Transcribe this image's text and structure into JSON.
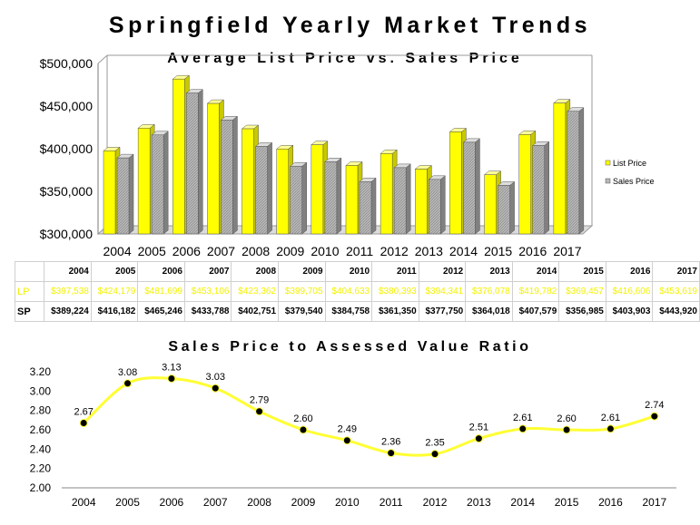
{
  "title": "Springfield Yearly Market Trends",
  "colors": {
    "list_price": "#ffff00",
    "sales_price": "#b8b8b8",
    "line": "#ffff33",
    "marker": "#000000"
  },
  "chart_data": [
    {
      "type": "bar",
      "title": "Average List Price vs. Sales Price",
      "categories": [
        "2004",
        "2005",
        "2006",
        "2007",
        "2008",
        "2009",
        "2010",
        "2011",
        "2012",
        "2013",
        "2014",
        "2015",
        "2016",
        "2017"
      ],
      "series": [
        {
          "name": "List Price",
          "values": [
            397538,
            424179,
            481699,
            453106,
            423362,
            399705,
            404633,
            380393,
            394341,
            376078,
            419782,
            369457,
            416606,
            453619
          ]
        },
        {
          "name": "Sales Price",
          "values": [
            389224,
            416182,
            465246,
            433788,
            402751,
            379540,
            384758,
            361350,
            377750,
            364018,
            407579,
            356985,
            403903,
            443920
          ]
        }
      ],
      "ylim": [
        300000,
        500000
      ],
      "yticks": [
        "$300,000",
        "$350,000",
        "$400,000",
        "$450,000",
        "$500,000"
      ],
      "legend": "right",
      "grid": false
    },
    {
      "type": "line",
      "title": "Sales Price to Assessed Value Ratio",
      "x": [
        "2004",
        "2005",
        "2006",
        "2007",
        "2008",
        "2009",
        "2010",
        "2011",
        "2012",
        "2013",
        "2014",
        "2015",
        "2016",
        "2017"
      ],
      "values": [
        2.67,
        3.08,
        3.13,
        3.03,
        2.79,
        2.6,
        2.49,
        2.36,
        2.35,
        2.51,
        2.61,
        2.6,
        2.61,
        2.74
      ],
      "labels": [
        "2.67",
        "3.08",
        "3.13",
        "3.03",
        "2.79",
        "2.60",
        "2.49",
        "2.36",
        "2.35",
        "2.51",
        "2.61",
        "2.60",
        "2.61",
        "2.74"
      ],
      "ylim": [
        2.0,
        3.2
      ],
      "yticks": [
        "2.00",
        "2.20",
        "2.40",
        "2.60",
        "2.80",
        "3.00",
        "3.20"
      ],
      "grid": false
    }
  ],
  "table": {
    "years": [
      "2004",
      "2005",
      "2006",
      "2007",
      "2008",
      "2009",
      "2010",
      "2011",
      "2012",
      "2013",
      "2014",
      "2015",
      "2016",
      "2017"
    ],
    "rows": [
      {
        "label": "LP",
        "values": [
          "$397,538",
          "$424,179",
          "$481,699",
          "$453,106",
          "$423,362",
          "$399,705",
          "$404,633",
          "$380,393",
          "$394,341",
          "$376,078",
          "$419,782",
          "$369,457",
          "$416,606",
          "$453,619"
        ]
      },
      {
        "label": "SP",
        "values": [
          "$389,224",
          "$416,182",
          "$465,246",
          "$433,788",
          "$402,751",
          "$379,540",
          "$384,758",
          "$361,350",
          "$377,750",
          "$364,018",
          "$407,579",
          "$356,985",
          "$403,903",
          "$443,920"
        ]
      }
    ]
  }
}
